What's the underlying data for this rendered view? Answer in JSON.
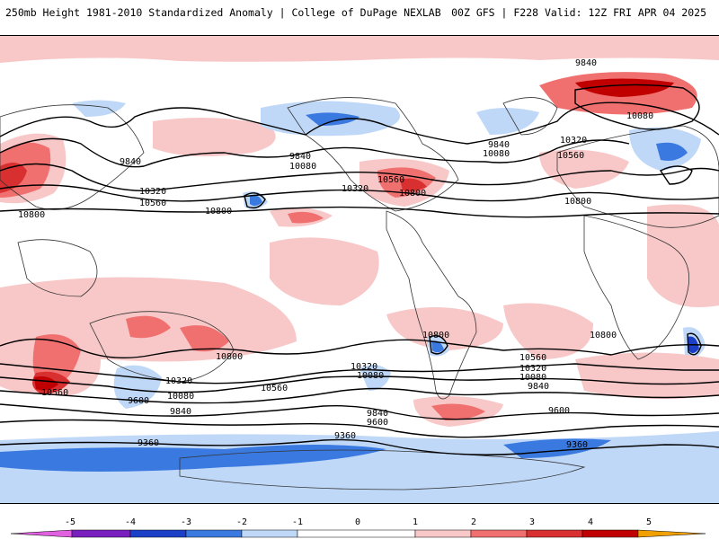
{
  "header": {
    "title": "250mb Height 1981-2010 Standardized Anomaly | College of DuPage NEXLAB",
    "model_info": "00Z GFS | F228 Valid: 12Z FRI APR 04 2025"
  },
  "colorbar": {
    "ticks": [
      "-5",
      "-4",
      "-3",
      "-2",
      "-1",
      "0",
      "1",
      "2",
      "3",
      "4",
      "5"
    ],
    "colors": {
      "n5": "#e060e0",
      "n4": "#7a1fbf",
      "n3": "#1c3fc8",
      "n2": "#3a7ae0",
      "n1": "#c0d8f8",
      "zero": "#ffffff",
      "p1": "#f8c8c8",
      "p2": "#f07070",
      "p3": "#d83030",
      "p4": "#c00000",
      "p5": "#f0a000"
    }
  },
  "contour_labels": [
    "9840",
    "10080",
    "9840",
    "10320",
    "10560",
    "10800",
    "9840",
    "10080",
    "10320",
    "10560",
    "10800",
    "9840",
    "10080",
    "10320",
    "10560",
    "10800",
    "10800",
    "10800",
    "10560",
    "10320",
    "10080",
    "9600",
    "9840",
    "10800",
    "10800",
    "10560",
    "10320",
    "10080",
    "10320",
    "10080",
    "10560",
    "9840",
    "9600",
    "9840",
    "9600",
    "9360",
    "9360",
    "9360"
  ]
}
